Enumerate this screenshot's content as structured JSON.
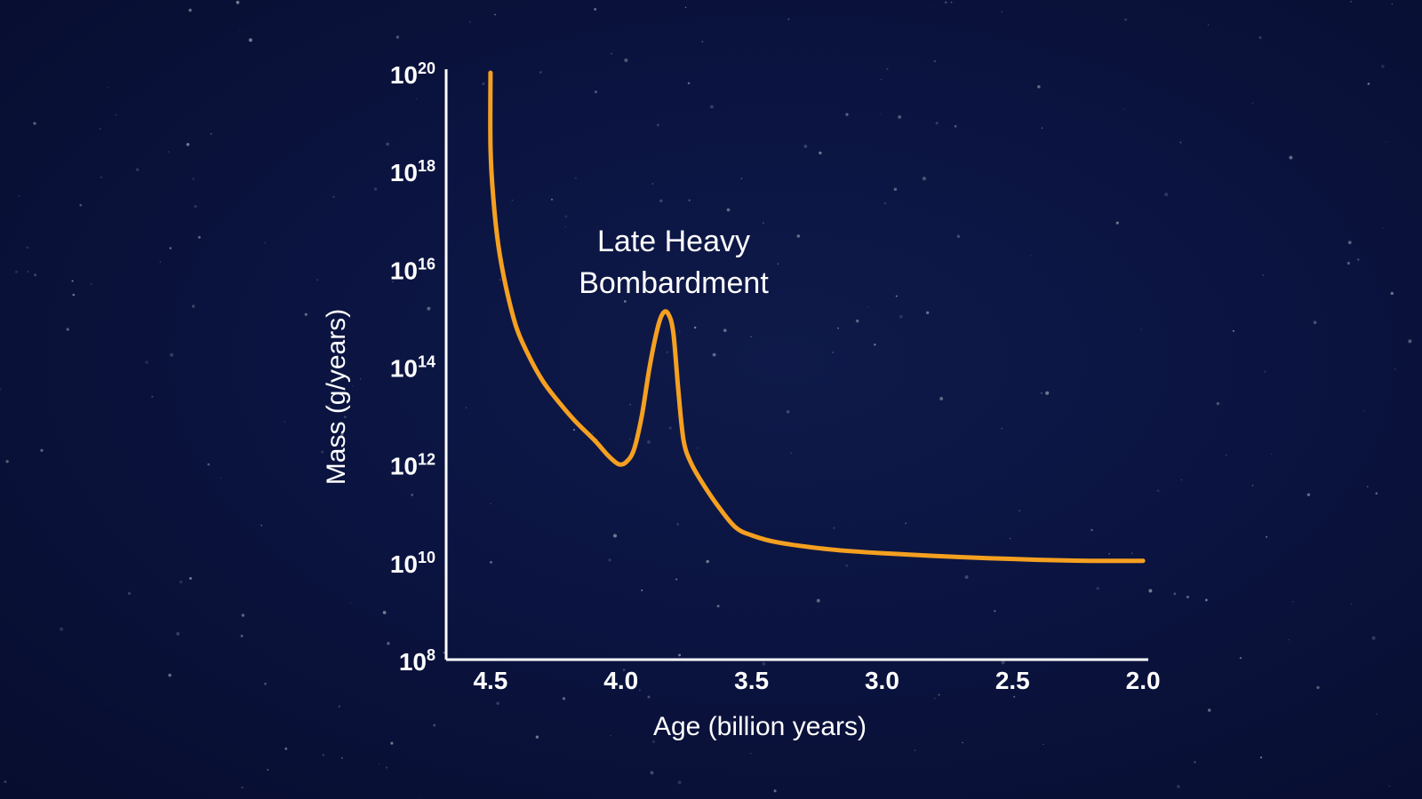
{
  "colors": {
    "background": "#0a1138",
    "series": "#f5a020",
    "axis": "#ffffff"
  },
  "chart_data": {
    "type": "line",
    "title": "",
    "xlabel": "Age (billion years)",
    "ylabel": "Mass (g/years)",
    "x_reversed": true,
    "y_scale": "log",
    "xlim": [
      4.67,
      1.98
    ],
    "ylim": [
      100000000.0,
      1e+20
    ],
    "x_ticks": [
      "4.5",
      "4.0",
      "3.5",
      "3.0",
      "2.5",
      "2.0"
    ],
    "x_tick_values": [
      4.5,
      4.0,
      3.5,
      3.0,
      2.5,
      2.0
    ],
    "y_ticks": [
      {
        "base": "10",
        "exp": "8",
        "value": 100000000.0
      },
      {
        "base": "10",
        "exp": "10",
        "value": 10000000000.0
      },
      {
        "base": "10",
        "exp": "12",
        "value": 1000000000000.0
      },
      {
        "base": "10",
        "exp": "14",
        "value": 100000000000000.0
      },
      {
        "base": "10",
        "exp": "16",
        "value": 1e+16
      },
      {
        "base": "10",
        "exp": "18",
        "value": 1e+18
      },
      {
        "base": "10",
        "exp": "20",
        "value": 1e+20
      }
    ],
    "annotations": [
      {
        "text_lines": [
          "Late Heavy",
          "Bombardment"
        ],
        "x": 3.82,
        "y": 1000000000000000.0
      }
    ],
    "grid": false,
    "legend": "none",
    "series": [
      {
        "points": [
          [
            4.5,
            1e+20
          ],
          [
            4.5,
            3e+18
          ],
          [
            4.49,
            3e+17
          ],
          [
            4.47,
            3e+16
          ],
          [
            4.44,
            4000000000000000.0
          ],
          [
            4.4,
            600000000000000.0
          ],
          [
            4.35,
            150000000000000.0
          ],
          [
            4.3,
            50000000000000.0
          ],
          [
            4.25,
            22000000000000.0
          ],
          [
            4.18,
            8000000000000.0
          ],
          [
            4.1,
            3000000000000.0
          ],
          [
            4.05,
            1500000000000.0
          ],
          [
            4.01,
            1000000000000.0
          ],
          [
            3.98,
            1100000000000.0
          ],
          [
            3.95,
            2000000000000.0
          ],
          [
            3.92,
            10000000000000.0
          ],
          [
            3.89,
            100000000000000.0
          ],
          [
            3.86,
            600000000000000.0
          ],
          [
            3.84,
            1200000000000000.0
          ],
          [
            3.82,
            1200000000000000.0
          ],
          [
            3.8,
            500000000000000.0
          ],
          [
            3.78,
            30000000000000.0
          ],
          [
            3.76,
            3000000000000.0
          ],
          [
            3.73,
            1000000000000.0
          ],
          [
            3.68,
            350000000000.0
          ],
          [
            3.62,
            120000000000.0
          ],
          [
            3.56,
            50000000000.0
          ],
          [
            3.5,
            35000000000.0
          ],
          [
            3.4,
            25000000000.0
          ],
          [
            3.2,
            18000000000.0
          ],
          [
            3.0,
            15000000000.0
          ],
          [
            2.7,
            12500000000.0
          ],
          [
            2.4,
            11000000000.0
          ],
          [
            2.2,
            10500000000.0
          ],
          [
            2.0,
            10500000000.0
          ]
        ]
      }
    ]
  }
}
